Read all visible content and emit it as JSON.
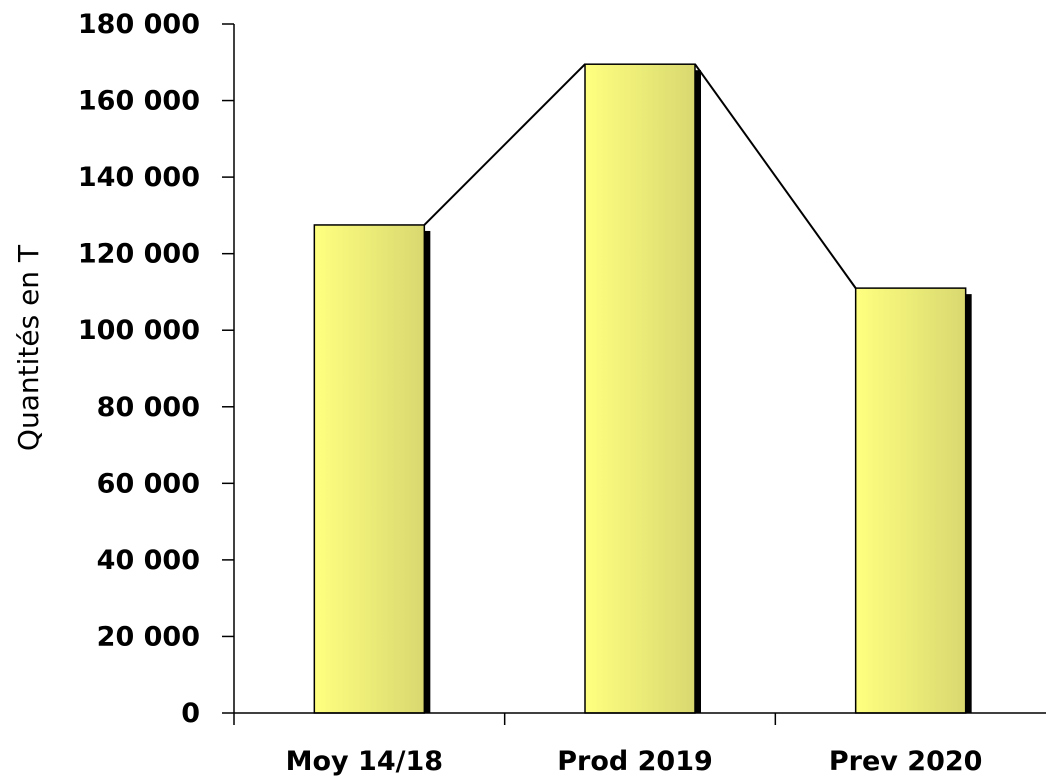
{
  "chart_data": {
    "type": "bar",
    "title": "",
    "xlabel": "",
    "ylabel": "Quantités en T",
    "categories": [
      "Moy 14/18",
      "Prod 2019",
      "Prev 2020"
    ],
    "values": [
      127500,
      169500,
      111000
    ],
    "ylim": [
      0,
      180000
    ],
    "yticks": [
      0,
      20000,
      40000,
      60000,
      80000,
      100000,
      120000,
      140000,
      160000,
      180000
    ],
    "ytick_labels": [
      "0",
      "20 000",
      "40 000",
      "60 000",
      "80 000",
      "100 000",
      "120 000",
      "140 000",
      "160 000",
      "180 000"
    ],
    "connecting_line": true,
    "grid": false,
    "legend": "none",
    "colors": {
      "bar_light": "#ffff80",
      "bar_dark": "#d8d870",
      "bar_shadow": "#000000",
      "axis": "#000000",
      "line": "#000000"
    }
  }
}
